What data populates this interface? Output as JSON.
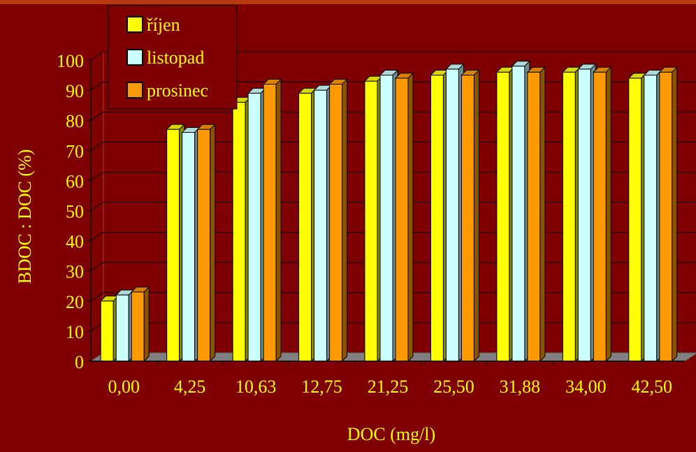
{
  "chart_data": {
    "type": "bar",
    "categories": [
      "0,00",
      "4,25",
      "10,63",
      "12,75",
      "21,25",
      "25,50",
      "31,88",
      "34,00",
      "42,50"
    ],
    "series": [
      {
        "name": "říjen",
        "color": "#ffff00",
        "values": [
          20,
          77,
          86,
          89,
          93,
          95,
          96,
          96,
          94
        ]
      },
      {
        "name": "listopad",
        "color": "#ccffff",
        "values": [
          22,
          76,
          89,
          90,
          95,
          97,
          98,
          97,
          95
        ]
      },
      {
        "name": "prosinec",
        "color": "#ff9900",
        "values": [
          23,
          77,
          92,
          92,
          94,
          95,
          96,
          96,
          96
        ]
      }
    ],
    "y_ticks": [
      "0",
      "10",
      "20",
      "30",
      "40",
      "50",
      "60",
      "70",
      "80",
      "90",
      "100"
    ],
    "ylim": [
      0,
      100
    ],
    "xlabel": "DOC (mg/l)",
    "ylabel": "BDOC : DOC (%)",
    "grid": true,
    "legend_position": "top-left",
    "colors": {
      "background": "#7f0000",
      "text": "#ffff00",
      "floor": "#808080",
      "gridline": "#000000"
    }
  }
}
